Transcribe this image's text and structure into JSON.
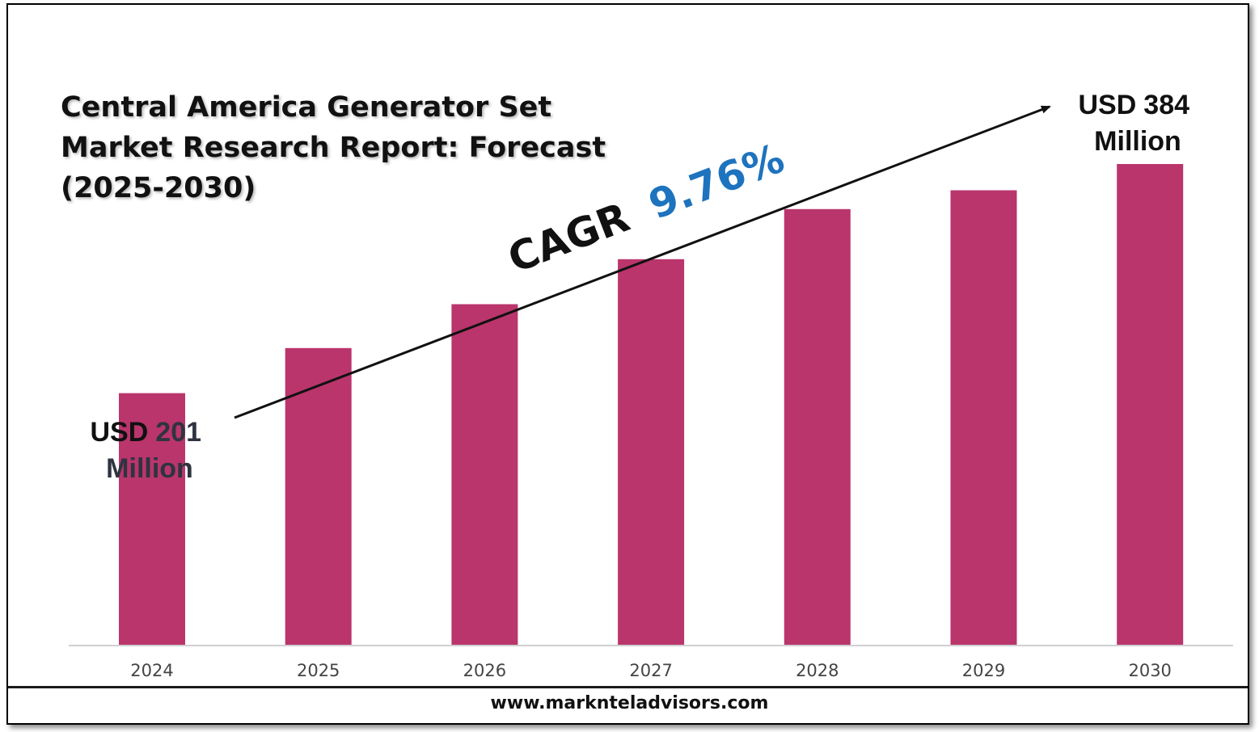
{
  "title_lines": [
    "Central America Generator Set",
    "Market Research Report: Forecast",
    "(2025-2030)"
  ],
  "cagr": {
    "label": "CAGR",
    "value": "9.76%"
  },
  "start_label": {
    "prefix": "USD",
    "value": "201",
    "unit": "Million"
  },
  "end_label": {
    "prefix": "USD",
    "value": "384",
    "unit": "Million"
  },
  "footer": "www.marknteladvisors.com",
  "colors": {
    "bar": "#BA356C",
    "cagr_value": "#1E73BE",
    "label_dark": "#2E3440",
    "axis": "#d0d0d0"
  },
  "chart_data": {
    "type": "bar",
    "categories": [
      "2024",
      "2025",
      "2026",
      "2027",
      "2028",
      "2029",
      "2030"
    ],
    "values": [
      201,
      237,
      272,
      308,
      348,
      363,
      384
    ],
    "ylim": [
      0,
      420
    ],
    "xlabel": "",
    "ylabel": "",
    "grid": false
  }
}
